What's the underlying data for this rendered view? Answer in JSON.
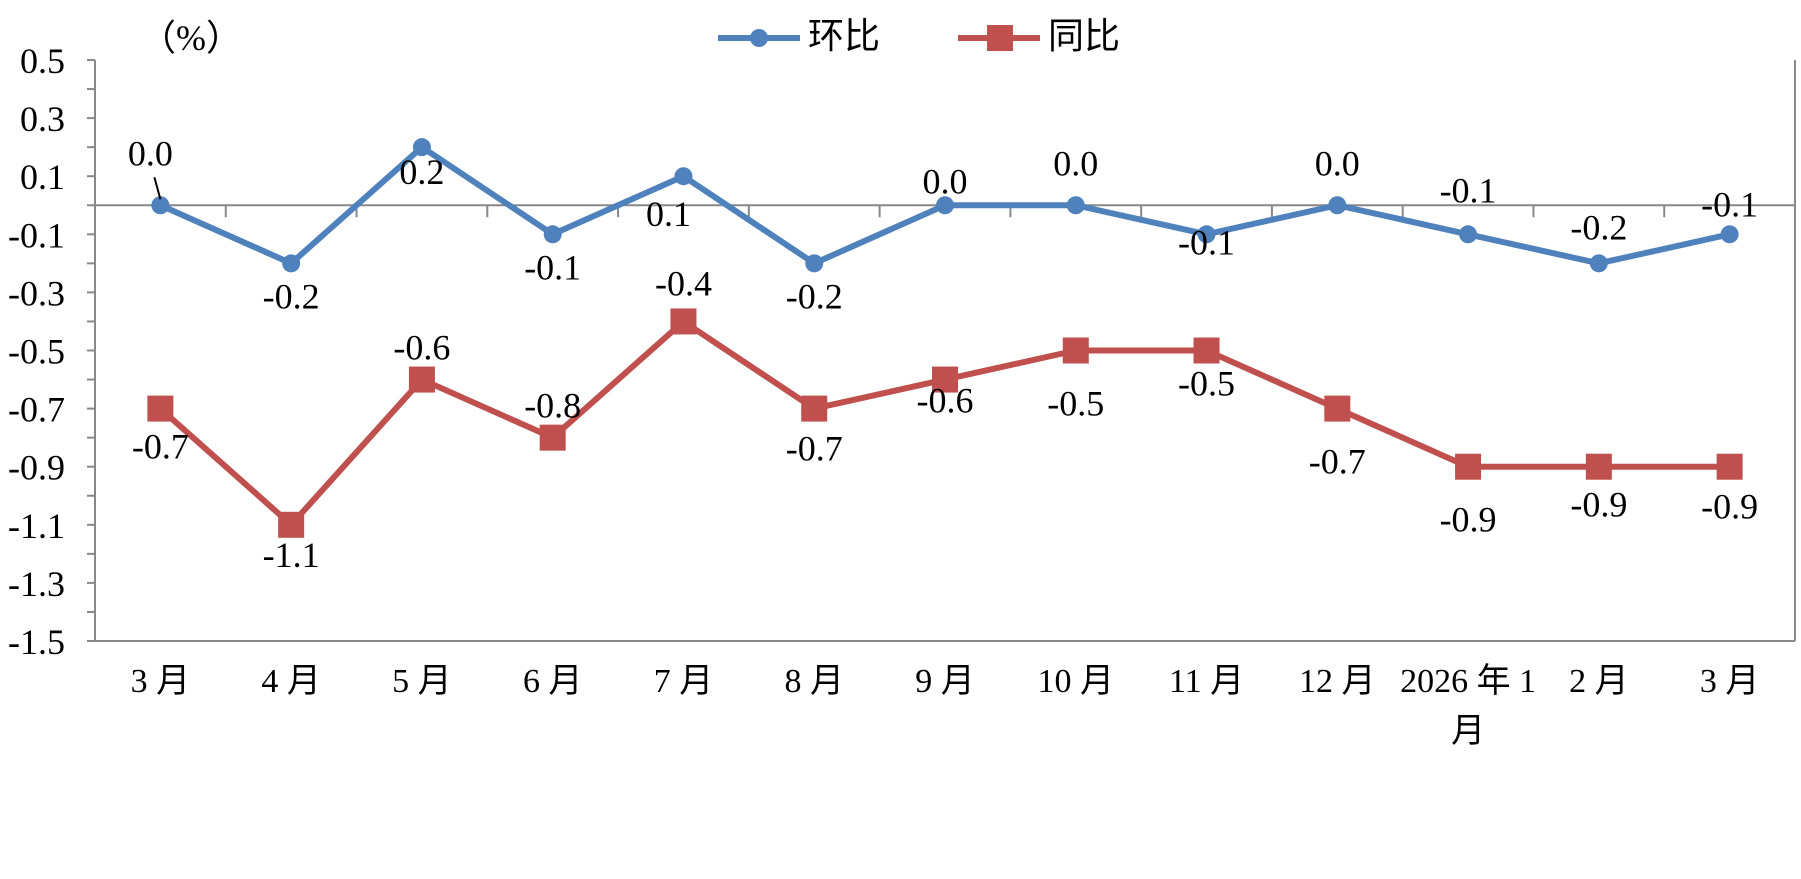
{
  "chart_data": {
    "type": "line",
    "ylabel": "（%）",
    "ylim": [
      -1.5,
      0.5
    ],
    "yticks": [
      "0.5",
      "0.3",
      "0.1",
      "-0.1",
      "-0.3",
      "-0.5",
      "-0.7",
      "-0.9",
      "-1.1",
      "-1.3",
      "-1.5"
    ],
    "categories": [
      "3月",
      "4月",
      "5月",
      "6月",
      "7月",
      "8月",
      "9月",
      "10月",
      "11月",
      "12月",
      "2026年1月",
      "2月",
      "3月"
    ],
    "category_lines": [
      [
        "3 月"
      ],
      [
        "4 月"
      ],
      [
        "5 月"
      ],
      [
        "6 月"
      ],
      [
        "7 月"
      ],
      [
        "8 月"
      ],
      [
        "9 月"
      ],
      [
        "10 月"
      ],
      [
        "11 月"
      ],
      [
        "12 月"
      ],
      [
        "2026 年 1",
        "月"
      ],
      [
        "2 月"
      ],
      [
        "3 月"
      ]
    ],
    "legend_position": "top-center",
    "grid": false,
    "series": [
      {
        "name": "环比",
        "color": "#4f81bd",
        "marker": "circle",
        "values": [
          0.0,
          -0.2,
          0.2,
          -0.1,
          0.1,
          -0.2,
          0.0,
          0.0,
          -0.1,
          0.0,
          -0.1,
          -0.2,
          -0.1
        ],
        "labels": [
          "0.0",
          "-0.2",
          "0.2",
          "-0.1",
          "0.1",
          "-0.2",
          "0.0",
          "0.0",
          "-0.1",
          "0.0",
          "-0.1",
          "-0.2",
          "-0.1"
        ]
      },
      {
        "name": "同比",
        "color": "#c0504d",
        "marker": "square",
        "values": [
          -0.7,
          -1.1,
          -0.6,
          -0.8,
          -0.4,
          -0.7,
          -0.6,
          -0.5,
          -0.5,
          -0.7,
          -0.9,
          -0.9,
          -0.9
        ],
        "labels": [
          "-0.7",
          "-1.1",
          "-0.6",
          "-0.8",
          "-0.4",
          "-0.7",
          "-0.6",
          "-0.5",
          "-0.5",
          "-0.7",
          "-0.9",
          "-0.9",
          "-0.9"
        ]
      }
    ]
  }
}
